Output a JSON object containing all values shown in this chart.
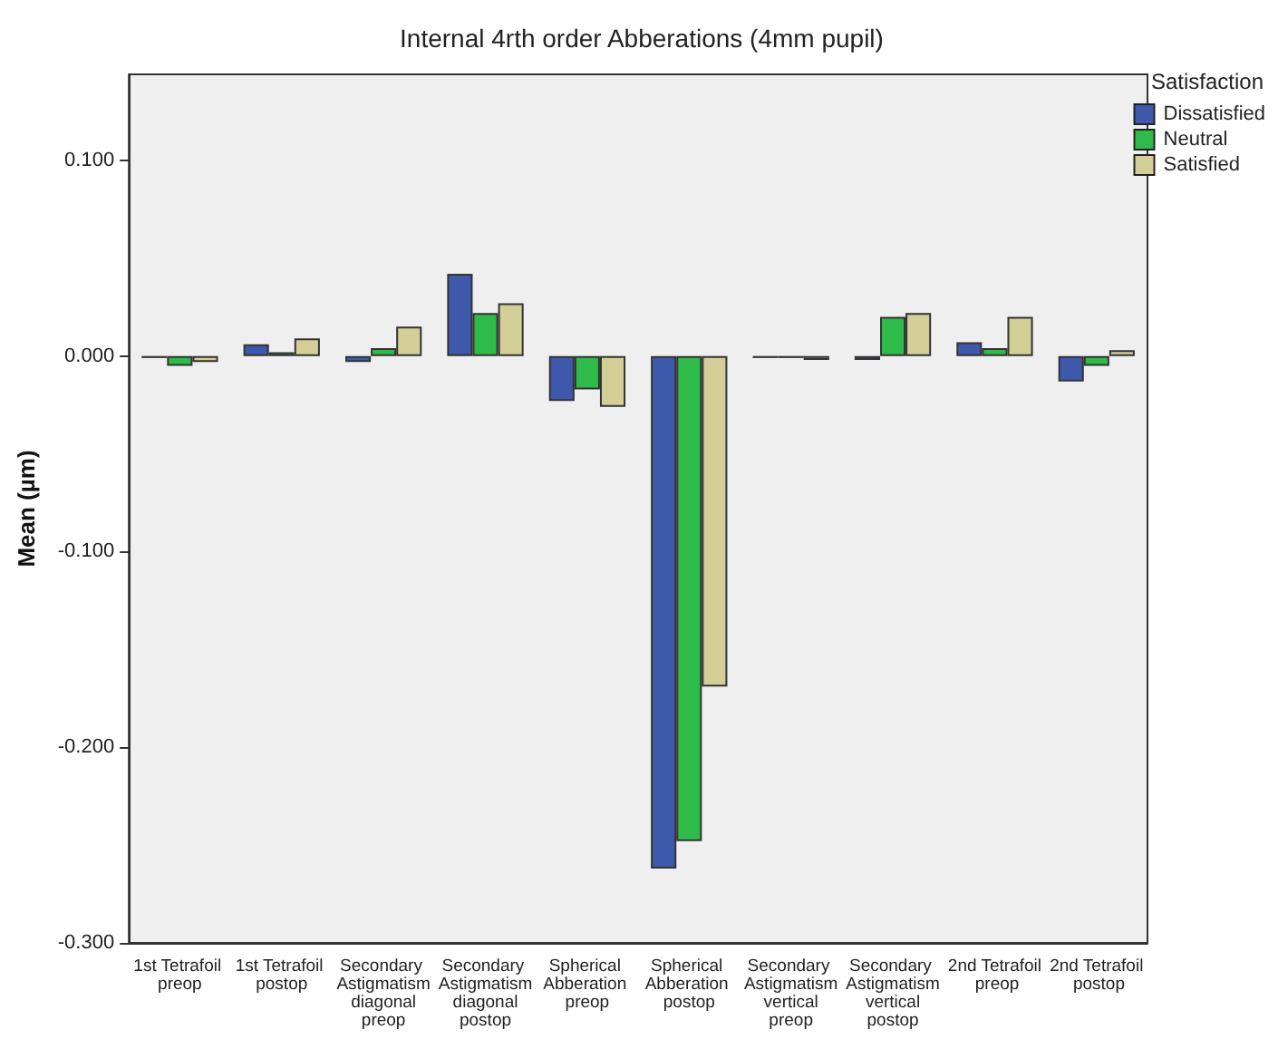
{
  "chart_data": {
    "type": "bar",
    "title": "Internal 4rth order Abberations (4mm pupil)",
    "ylabel": "Mean (µm)",
    "legend_title": "Satisfaction",
    "legend": "top right",
    "categories": [
      "1st Tetrafoil preop",
      "1st Tetrafoil postop",
      "Secondary Astigmatism diagonal preop",
      "Secondary Astigmatism diagonal postop",
      "Spherical Abberation preop",
      "Spherical Abberation postop",
      "Secondary Astigmatism vertical preop",
      "Secondary Astigmatism vertical postop",
      "2nd Tetrafoil preop",
      "2nd Tetrafoil postop"
    ],
    "series": [
      {
        "name": "Dissatisfied",
        "color": "#3e58ac",
        "values": [
          -0.001,
          0.006,
          -0.003,
          0.042,
          -0.023,
          -0.262,
          -0.001,
          -0.002,
          0.007,
          -0.013
        ]
      },
      {
        "name": "Neutral",
        "color": "#2fbb4a",
        "values": [
          -0.005,
          0.002,
          0.004,
          0.022,
          -0.017,
          -0.248,
          -0.001,
          0.02,
          0.004,
          -0.005
        ]
      },
      {
        "name": "Satisfied",
        "color": "#d4ce97",
        "values": [
          -0.003,
          0.009,
          0.015,
          0.027,
          -0.026,
          -0.169,
          -0.002,
          0.022,
          0.02,
          0.003
        ]
      }
    ],
    "ylim": [
      -0.3,
      0.144
    ],
    "yticks": [
      {
        "value": -0.3,
        "label": "-0.300"
      },
      {
        "value": -0.2,
        "label": "-0.200"
      },
      {
        "value": -0.1,
        "label": "-0.100"
      },
      {
        "value": 0,
        "label": "0.000"
      },
      {
        "value": 0.1,
        "label": "0.100"
      }
    ],
    "grid": false
  }
}
